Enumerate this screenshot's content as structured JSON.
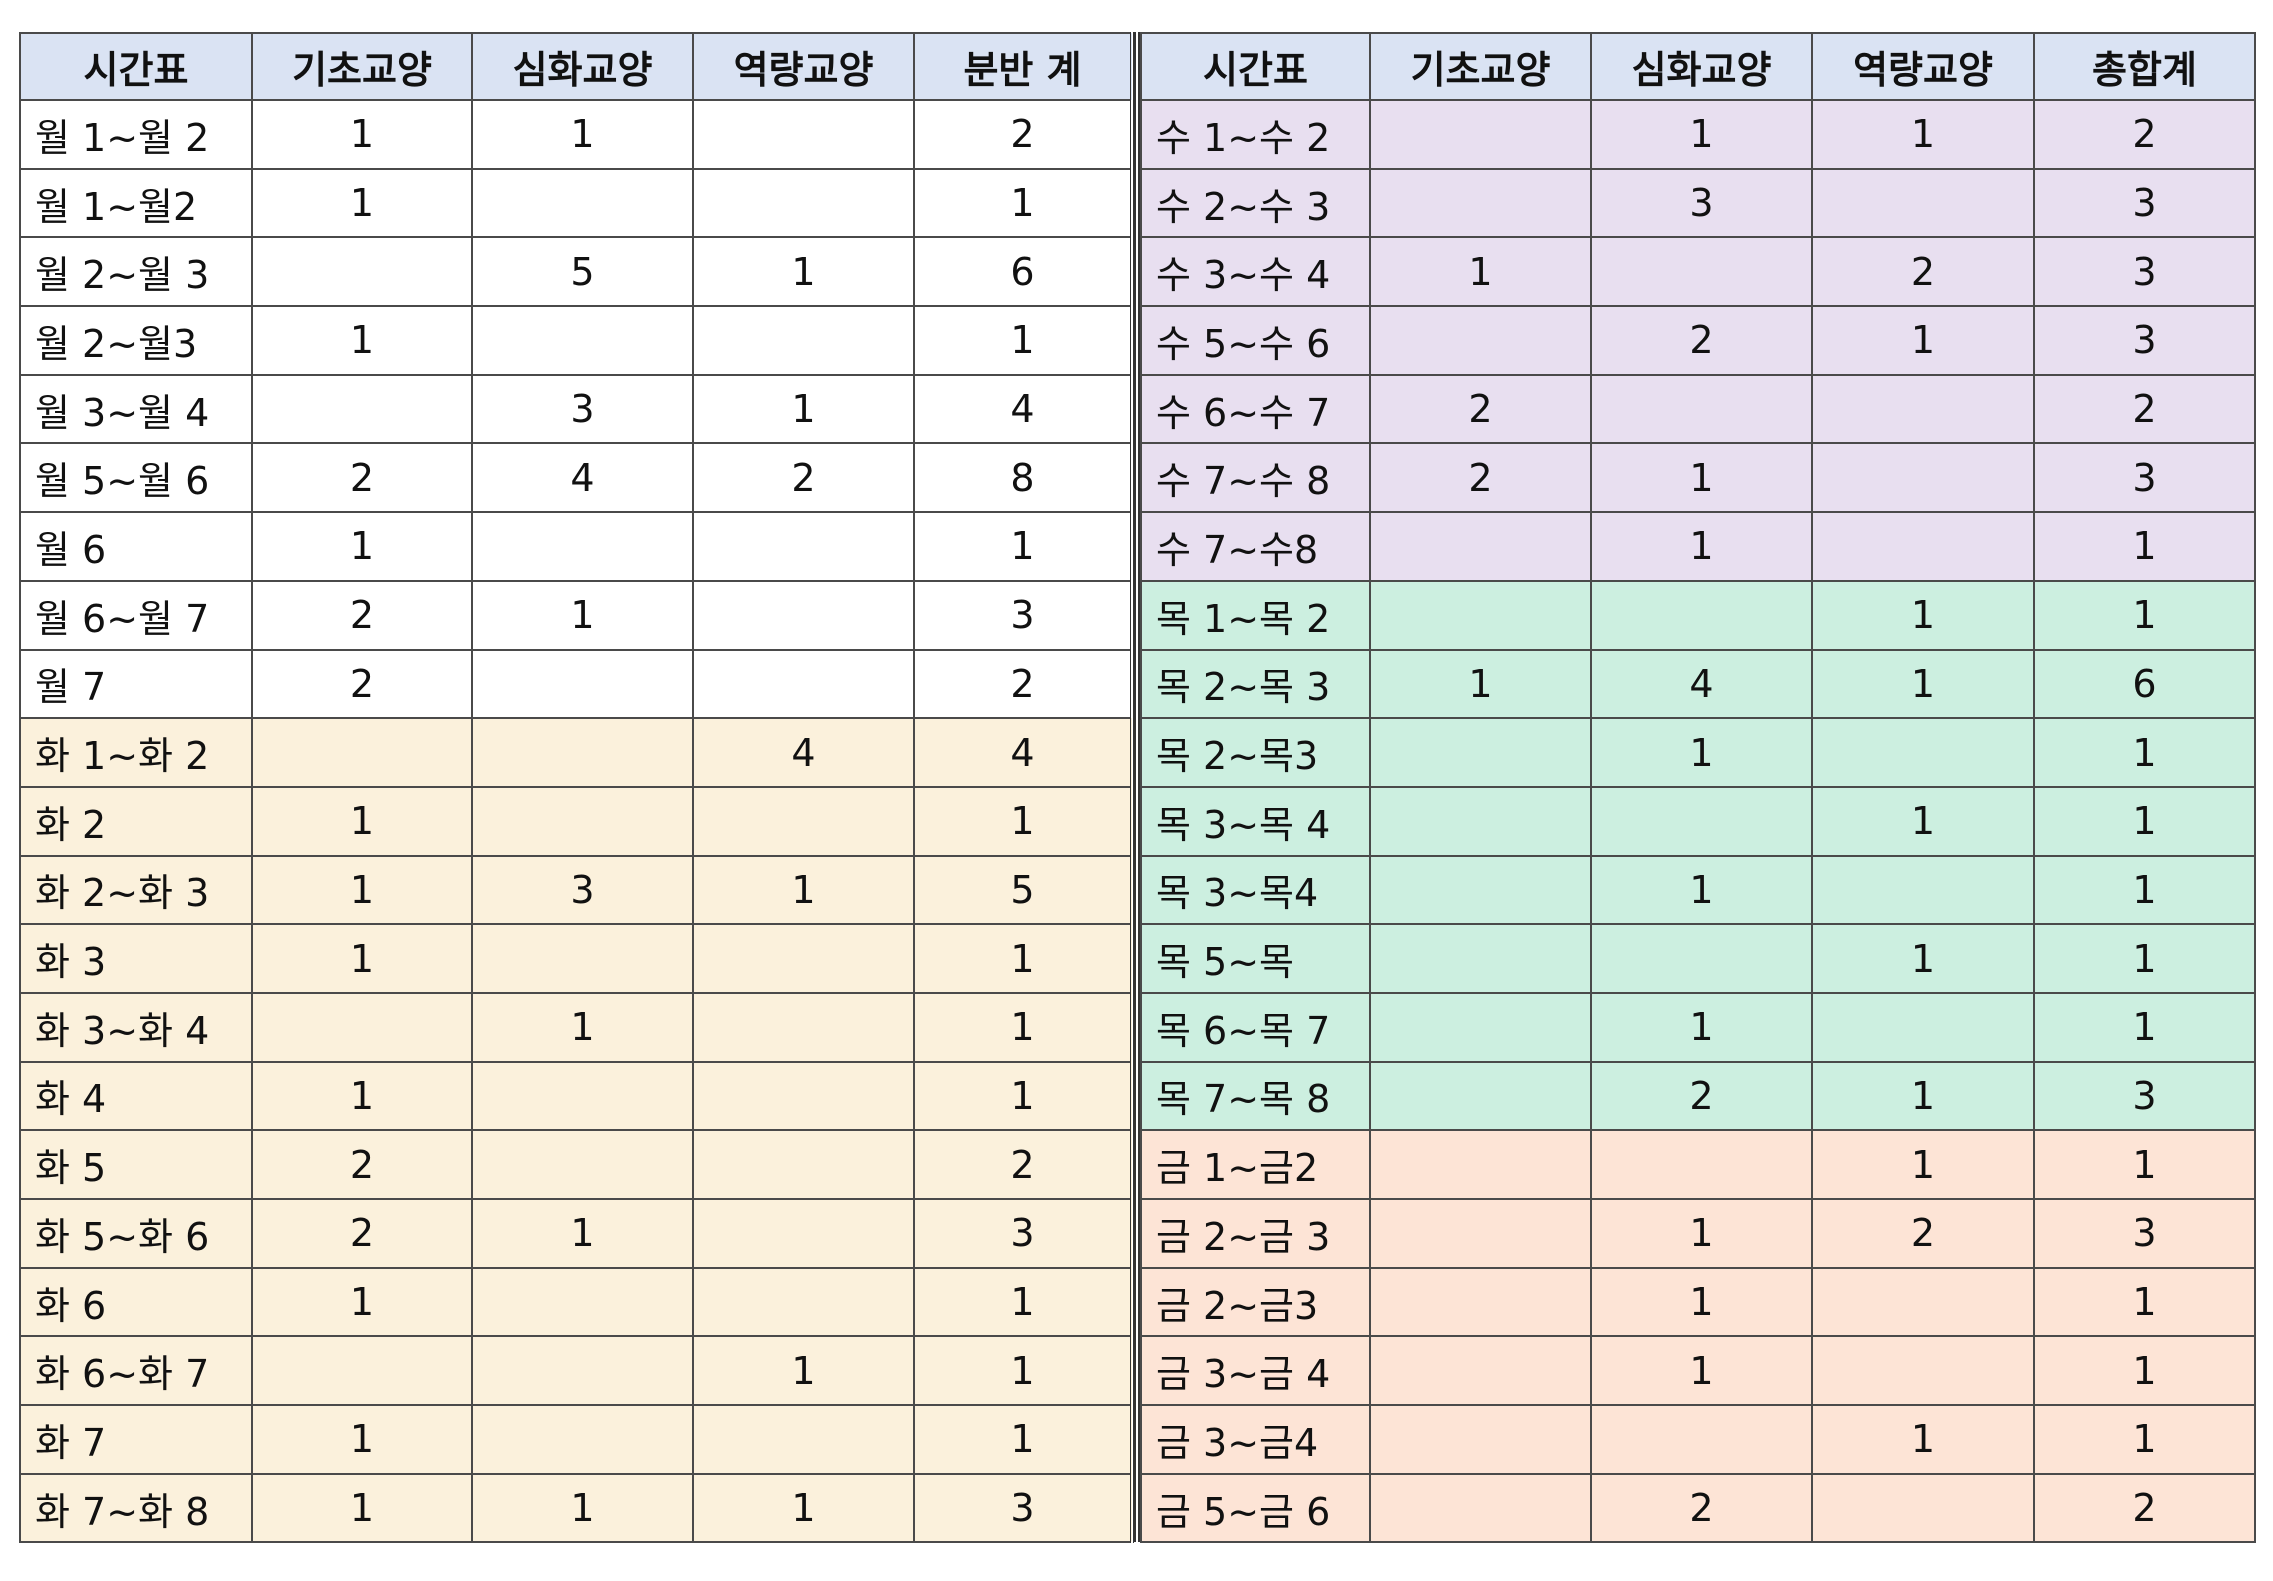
{
  "colors": {
    "header": "#dae3f3",
    "mon": "#ffffff",
    "tue": "#fbf1dc",
    "wed": "#e8dff0",
    "thu": "#ccefe0",
    "fri": "#fde4d6"
  },
  "left": {
    "headers": [
      "시간표",
      "기초교양",
      "심화교양",
      "역량교양",
      "분반 계"
    ],
    "rows": [
      {
        "day": "mon",
        "cells": [
          "월 1~월 2",
          "1",
          "1",
          "",
          "2"
        ]
      },
      {
        "day": "mon",
        "cells": [
          "월 1~월2",
          "1",
          "",
          "",
          "1"
        ]
      },
      {
        "day": "mon",
        "cells": [
          "월 2~월 3",
          "",
          "5",
          "1",
          "6"
        ]
      },
      {
        "day": "mon",
        "cells": [
          "월 2~월3",
          "1",
          "",
          "",
          "1"
        ]
      },
      {
        "day": "mon",
        "cells": [
          "월 3~월 4",
          "",
          "3",
          "1",
          "4"
        ]
      },
      {
        "day": "mon",
        "cells": [
          "월 5~월 6",
          "2",
          "4",
          "2",
          "8"
        ]
      },
      {
        "day": "mon",
        "cells": [
          "월 6",
          "1",
          "",
          "",
          "1"
        ]
      },
      {
        "day": "mon",
        "cells": [
          "월 6~월 7",
          "2",
          "1",
          "",
          "3"
        ]
      },
      {
        "day": "mon",
        "cells": [
          "월 7",
          "2",
          "",
          "",
          "2"
        ]
      },
      {
        "day": "tue",
        "cells": [
          "화 1~화 2",
          "",
          "",
          "4",
          "4"
        ]
      },
      {
        "day": "tue",
        "cells": [
          "화 2",
          "1",
          "",
          "",
          "1"
        ]
      },
      {
        "day": "tue",
        "cells": [
          "화 2~화 3",
          "1",
          "3",
          "1",
          "5"
        ]
      },
      {
        "day": "tue",
        "cells": [
          "화 3",
          "1",
          "",
          "",
          "1"
        ]
      },
      {
        "day": "tue",
        "cells": [
          "화 3~화 4",
          "",
          "1",
          "",
          "1"
        ]
      },
      {
        "day": "tue",
        "cells": [
          "화 4",
          "1",
          "",
          "",
          "1"
        ]
      },
      {
        "day": "tue",
        "cells": [
          "화 5",
          "2",
          "",
          "",
          "2"
        ]
      },
      {
        "day": "tue",
        "cells": [
          "화 5~화 6",
          "2",
          "1",
          "",
          "3"
        ]
      },
      {
        "day": "tue",
        "cells": [
          "화 6",
          "1",
          "",
          "",
          "1"
        ]
      },
      {
        "day": "tue",
        "cells": [
          "화 6~화 7",
          "",
          "",
          "1",
          "1"
        ]
      },
      {
        "day": "tue",
        "cells": [
          "화 7",
          "1",
          "",
          "",
          "1"
        ]
      },
      {
        "day": "tue",
        "cells": [
          "화 7~화 8",
          "1",
          "1",
          "1",
          "3"
        ]
      }
    ]
  },
  "right": {
    "headers": [
      "시간표",
      "기초교양",
      "심화교양",
      "역량교양",
      "총합계"
    ],
    "rows": [
      {
        "day": "wed",
        "cells": [
          "수 1~수 2",
          "",
          "1",
          "1",
          "2"
        ]
      },
      {
        "day": "wed",
        "cells": [
          "수 2~수 3",
          "",
          "3",
          "",
          "3"
        ]
      },
      {
        "day": "wed",
        "cells": [
          "수 3~수 4",
          "1",
          "",
          "2",
          "3"
        ]
      },
      {
        "day": "wed",
        "cells": [
          "수 5~수 6",
          "",
          "2",
          "1",
          "3"
        ]
      },
      {
        "day": "wed",
        "cells": [
          "수 6~수 7",
          "2",
          "",
          "",
          "2"
        ]
      },
      {
        "day": "wed",
        "cells": [
          "수 7~수 8",
          "2",
          "1",
          "",
          "3"
        ]
      },
      {
        "day": "wed",
        "cells": [
          "수 7~수8",
          "",
          "1",
          "",
          "1"
        ]
      },
      {
        "day": "thu",
        "cells": [
          "목 1~목 2",
          "",
          "",
          "1",
          "1"
        ]
      },
      {
        "day": "thu",
        "cells": [
          "목 2~목 3",
          "1",
          "4",
          "1",
          "6"
        ]
      },
      {
        "day": "thu",
        "cells": [
          "목 2~목3",
          "",
          "1",
          "",
          "1"
        ]
      },
      {
        "day": "thu",
        "cells": [
          "목 3~목 4",
          "",
          "",
          "1",
          "1"
        ]
      },
      {
        "day": "thu",
        "cells": [
          "목 3~목4",
          "",
          "1",
          "",
          "1"
        ]
      },
      {
        "day": "thu",
        "cells": [
          "목 5~목",
          "",
          "",
          "1",
          "1"
        ]
      },
      {
        "day": "thu",
        "cells": [
          "목 6~목 7",
          "",
          "1",
          "",
          "1"
        ]
      },
      {
        "day": "thu",
        "cells": [
          "목 7~목 8",
          "",
          "2",
          "1",
          "3"
        ]
      },
      {
        "day": "fri",
        "cells": [
          "금 1~금2",
          "",
          "",
          "1",
          "1"
        ]
      },
      {
        "day": "fri",
        "cells": [
          "금 2~금 3",
          "",
          "1",
          "2",
          "3"
        ]
      },
      {
        "day": "fri",
        "cells": [
          "금 2~금3",
          "",
          "1",
          "",
          "1"
        ]
      },
      {
        "day": "fri",
        "cells": [
          "금 3~금 4",
          "",
          "1",
          "",
          "1"
        ]
      },
      {
        "day": "fri",
        "cells": [
          "금 3~금4",
          "",
          "",
          "1",
          "1"
        ]
      },
      {
        "day": "fri",
        "cells": [
          "금 5~금 6",
          "",
          "2",
          "",
          "2"
        ]
      }
    ]
  }
}
